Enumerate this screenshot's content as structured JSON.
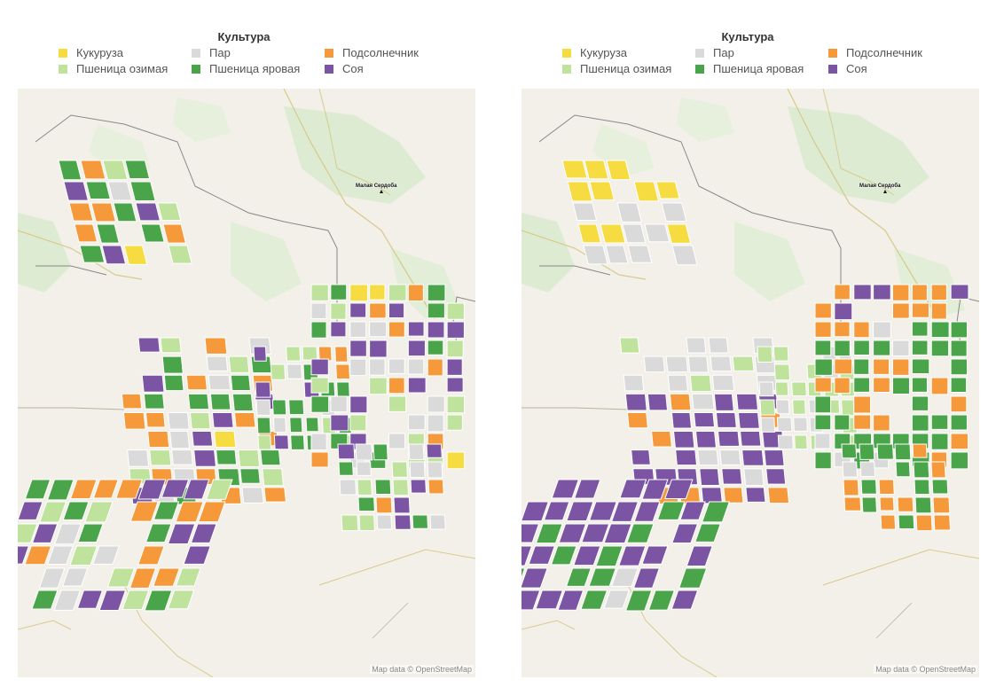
{
  "panels": [
    {
      "id": "left",
      "legend": {
        "title": "Культура",
        "items": [
          {
            "label": "Кукуруза",
            "color": "#f7dc41"
          },
          {
            "label": "Пар",
            "color": "#dadada"
          },
          {
            "label": "Подсолнечник",
            "color": "#f5993a"
          },
          {
            "label": "Пшеница озимая",
            "color": "#bfe29d"
          },
          {
            "label": "Пшеница яровая",
            "color": "#4aa54a"
          },
          {
            "label": "Соя",
            "color": "#7b54a3"
          }
        ]
      },
      "town": "Малая Сердоба",
      "attribution": "Map data © OpenStreetMap"
    },
    {
      "id": "right",
      "legend": {
        "title": "Культура",
        "items": [
          {
            "label": "Кукуруза",
            "color": "#f7dc41"
          },
          {
            "label": "Пар",
            "color": "#dadada"
          },
          {
            "label": "Подсолнечник",
            "color": "#f5993a"
          },
          {
            "label": "Пшеница озимая",
            "color": "#bfe29d"
          },
          {
            "label": "Пшеница яровая",
            "color": "#4aa54a"
          },
          {
            "label": "Соя",
            "color": "#7b54a3"
          }
        ]
      },
      "town": "Малая Сердоба",
      "attribution": "Map data © OpenStreetMap"
    }
  ]
}
